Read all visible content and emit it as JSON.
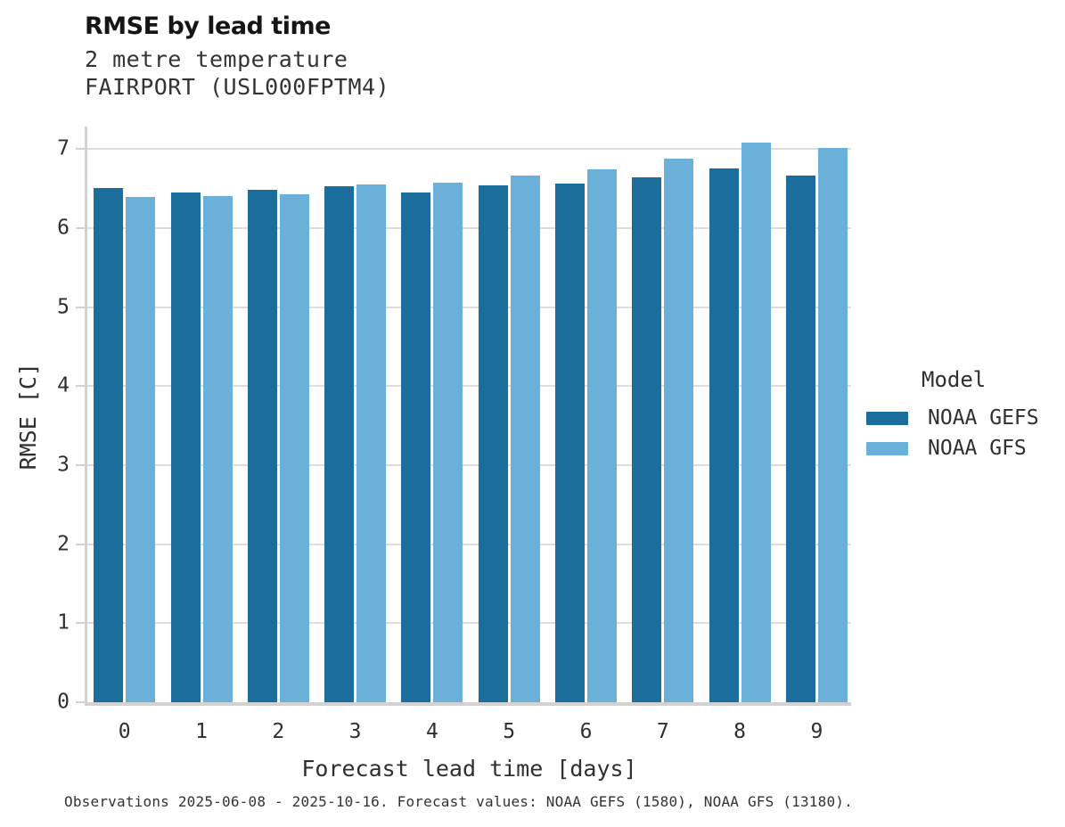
{
  "header": {
    "title": "RMSE by lead time",
    "subtitle1": "2 metre temperature",
    "subtitle2": "FAIRPORT (USL000FPTM4)"
  },
  "caption": "Observations 2025-06-08 - 2025-10-16. Forecast values: NOAA GEFS (1580), NOAA GFS (13180).",
  "chart_data": {
    "type": "bar",
    "title": "RMSE by lead time",
    "subtitle": "2 metre temperature",
    "station": "FAIRPORT (USL000FPTM4)",
    "xlabel": "Forecast lead time [days]",
    "ylabel": "RMSE [C]",
    "categories": [
      "0",
      "1",
      "2",
      "3",
      "4",
      "5",
      "6",
      "7",
      "8",
      "9"
    ],
    "series": [
      {
        "name": "NOAA GEFS",
        "color": "#1b6e9c",
        "values": [
          6.51,
          6.45,
          6.49,
          6.53,
          6.45,
          6.54,
          6.56,
          6.64,
          6.75,
          6.67
        ]
      },
      {
        "name": "NOAA GFS",
        "color": "#6ab0d8",
        "values": [
          6.39,
          6.41,
          6.43,
          6.55,
          6.57,
          6.66,
          6.74,
          6.88,
          7.08,
          7.02
        ]
      }
    ],
    "ylim": [
      0,
      7.33
    ],
    "yticks": [
      0,
      1,
      2,
      3,
      4,
      5,
      6,
      7
    ],
    "grid": "horizontal",
    "legend": {
      "title": "Model",
      "position": "right"
    }
  },
  "colors": {
    "gefs": "#1b6e9c",
    "gfs": "#6ab0d8",
    "gridline": "#dcdcdc",
    "spine": "#d2d2d2"
  }
}
